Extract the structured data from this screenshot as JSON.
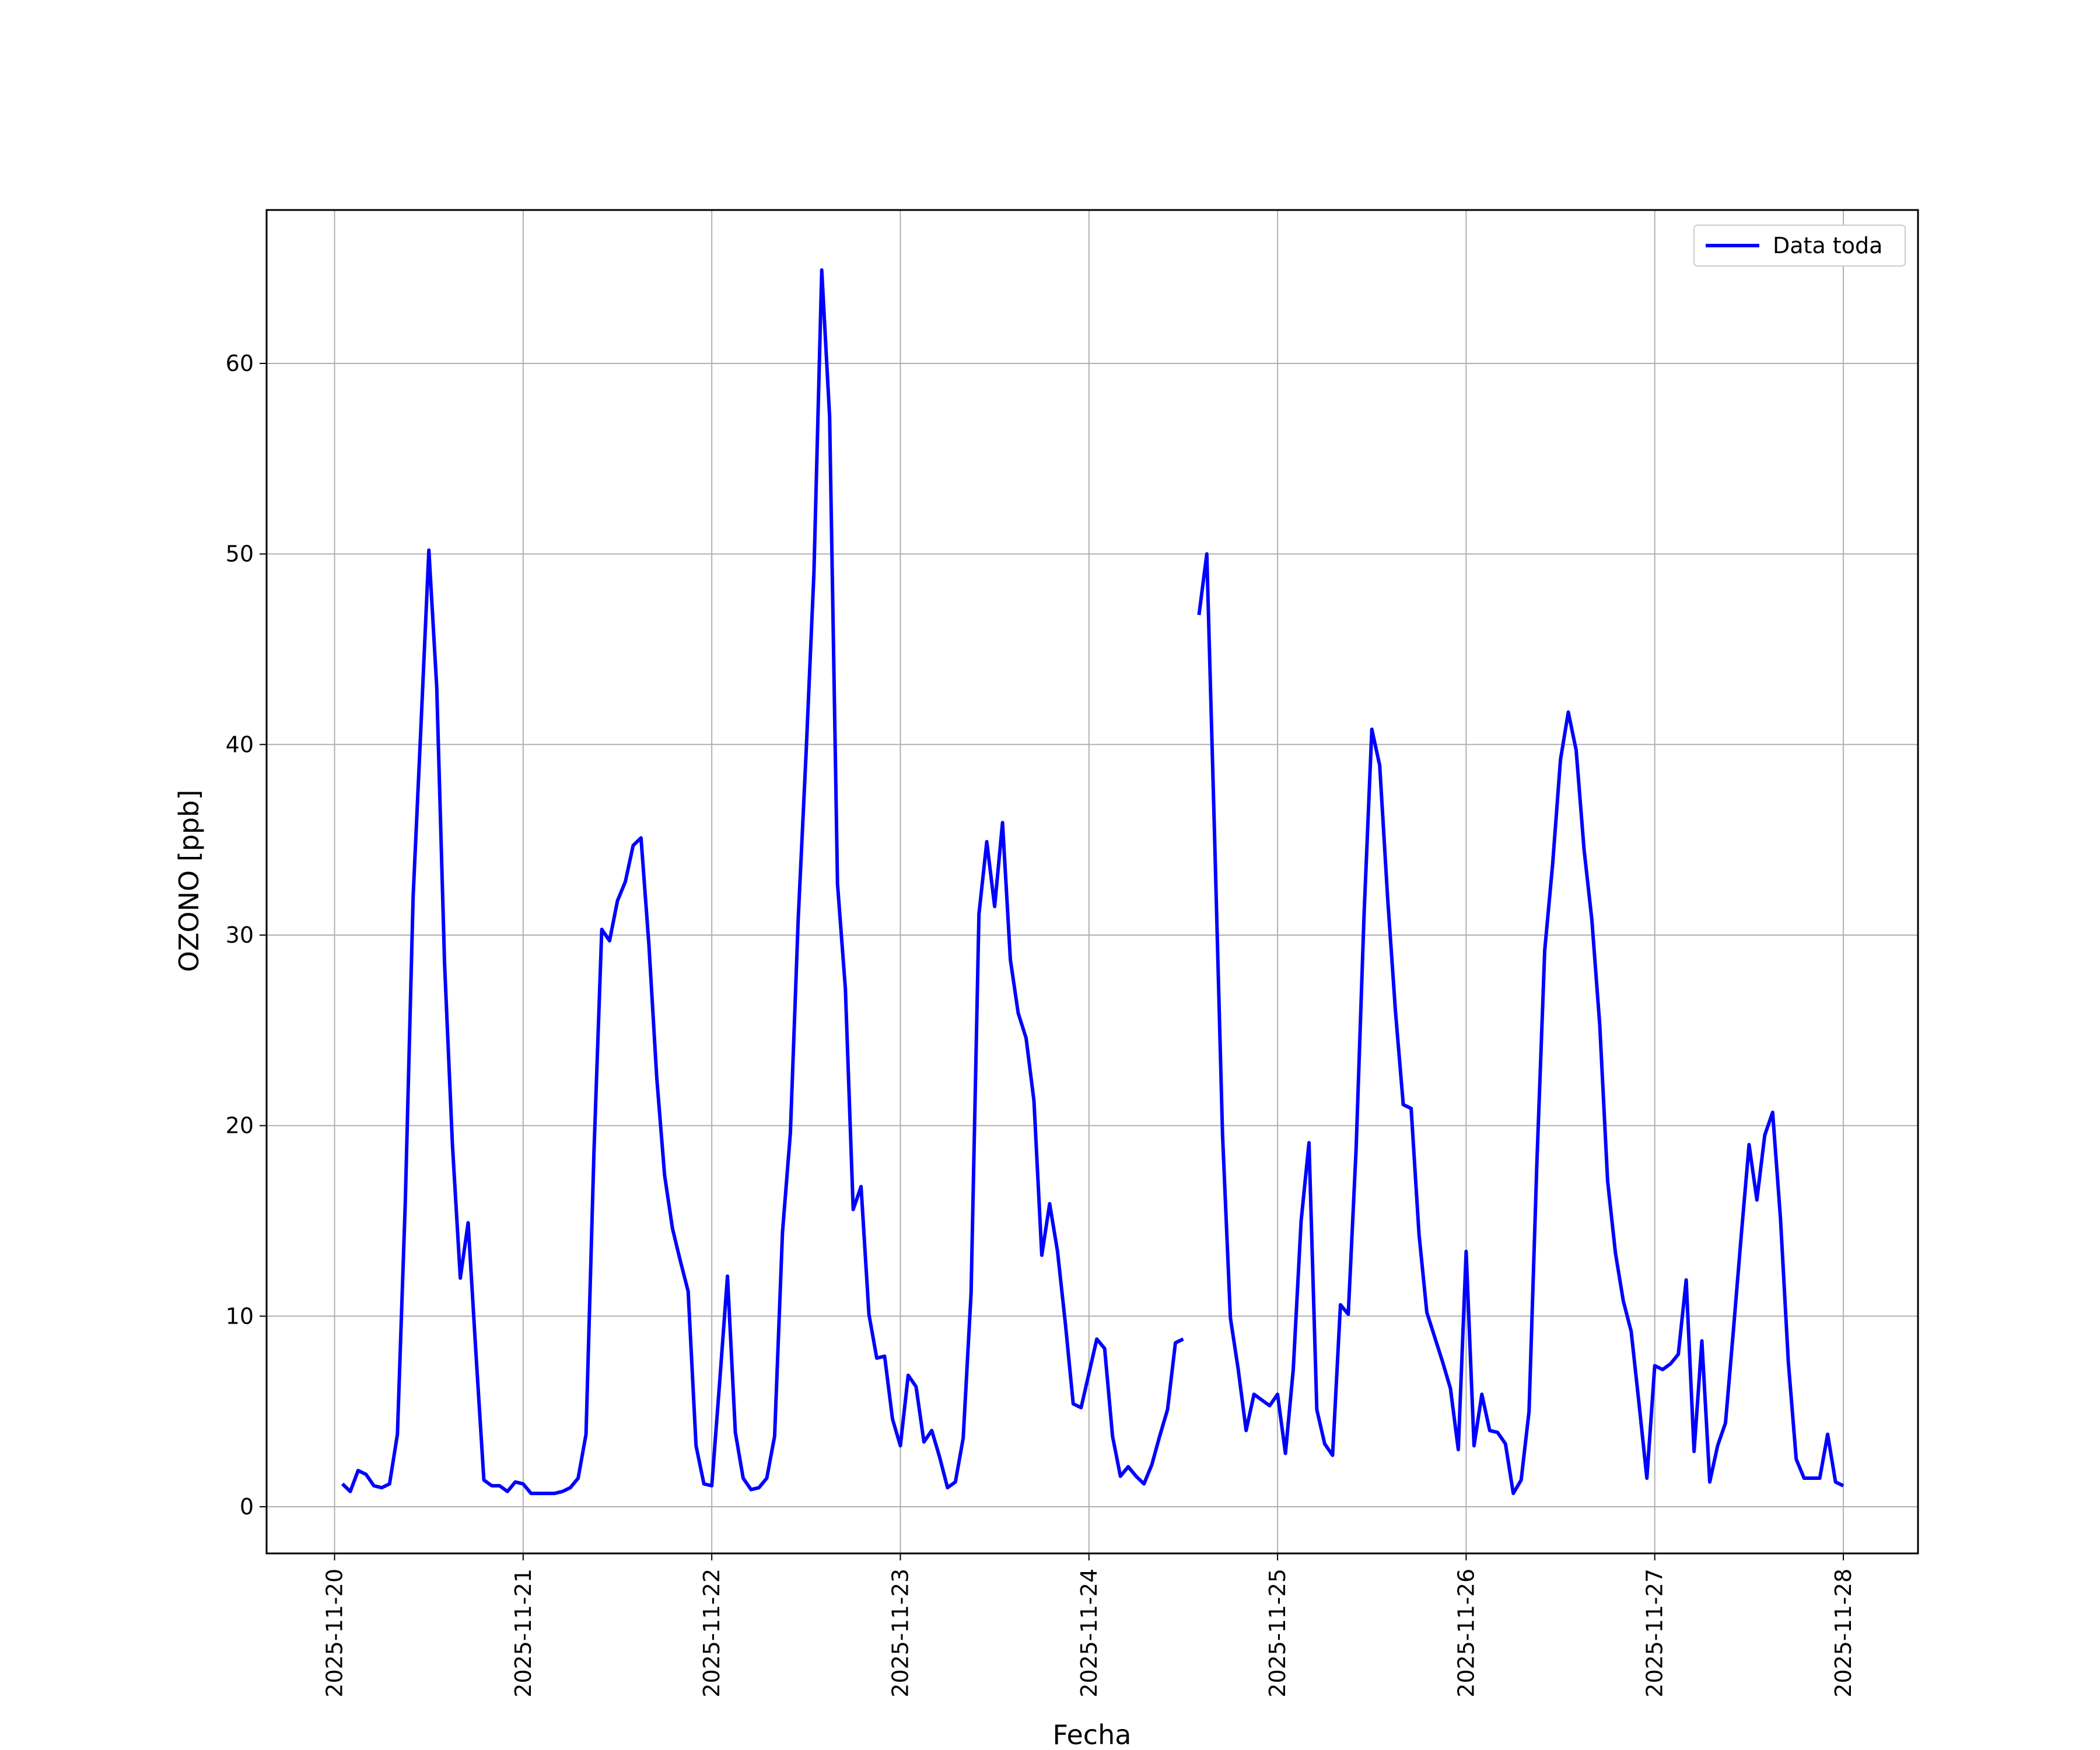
{
  "chart_data": {
    "type": "line",
    "xlabel": "Fecha",
    "ylabel": "OZONO [ppb]",
    "xlim": [
      "2025-11-19 15:21",
      "2025-11-28 09:30"
    ],
    "xticks": [
      "2025-11-20",
      "2025-11-21",
      "2025-11-22",
      "2025-11-23",
      "2025-11-24",
      "2025-11-25",
      "2025-11-26",
      "2025-11-27",
      "2025-11-28"
    ],
    "ylim": [
      -2.45,
      68.05
    ],
    "yticks": [
      0,
      10,
      20,
      30,
      40,
      50,
      60
    ],
    "grid": true,
    "legend": "upper right",
    "x": [
      "2025-11-20 01:00",
      "2025-11-20 02:00",
      "2025-11-20 03:00",
      "2025-11-20 04:00",
      "2025-11-20 05:00",
      "2025-11-20 06:00",
      "2025-11-20 07:00",
      "2025-11-20 08:00",
      "2025-11-20 09:00",
      "2025-11-20 10:00",
      "2025-11-20 11:00",
      "2025-11-20 12:00",
      "2025-11-20 13:00",
      "2025-11-20 14:00",
      "2025-11-20 15:00",
      "2025-11-20 16:00",
      "2025-11-20 17:00",
      "2025-11-20 18:00",
      "2025-11-20 19:00",
      "2025-11-20 20:00",
      "2025-11-20 21:00",
      "2025-11-20 22:00",
      "2025-11-20 23:00",
      "2025-11-21 00:00",
      "2025-11-21 01:00",
      "2025-11-21 02:00",
      "2025-11-21 03:00",
      "2025-11-21 04:00",
      "2025-11-21 05:00",
      "2025-11-21 06:00",
      "2025-11-21 07:00",
      "2025-11-21 08:00",
      "2025-11-21 09:00",
      "2025-11-21 10:00",
      "2025-11-21 11:00",
      "2025-11-21 12:00",
      "2025-11-21 13:00",
      "2025-11-21 14:00",
      "2025-11-21 15:00",
      "2025-11-21 16:00",
      "2025-11-21 17:00",
      "2025-11-21 18:00",
      "2025-11-21 19:00",
      "2025-11-21 20:00",
      "2025-11-21 21:00",
      "2025-11-21 22:00",
      "2025-11-21 23:00",
      "2025-11-22 00:00",
      "2025-11-22 01:00",
      "2025-11-22 02:00",
      "2025-11-22 03:00",
      "2025-11-22 04:00",
      "2025-11-22 05:00",
      "2025-11-22 06:00",
      "2025-11-22 07:00",
      "2025-11-22 08:00",
      "2025-11-22 09:00",
      "2025-11-22 10:00",
      "2025-11-22 11:00",
      "2025-11-22 12:00",
      "2025-11-22 13:00",
      "2025-11-22 14:00",
      "2025-11-22 15:00",
      "2025-11-22 16:00",
      "2025-11-22 17:00",
      "2025-11-22 18:00",
      "2025-11-22 19:00",
      "2025-11-22 20:00",
      "2025-11-22 21:00",
      "2025-11-22 22:00",
      "2025-11-22 23:00",
      "2025-11-23 00:00",
      "2025-11-23 01:00",
      "2025-11-23 02:00",
      "2025-11-23 03:00",
      "2025-11-23 04:00",
      "2025-11-23 05:00",
      "2025-11-23 06:00",
      "2025-11-23 07:00",
      "2025-11-23 08:00",
      "2025-11-23 09:00",
      "2025-11-23 10:00",
      "2025-11-23 11:00",
      "2025-11-23 12:00",
      "2025-11-23 13:00",
      "2025-11-23 14:00",
      "2025-11-23 15:00",
      "2025-11-23 16:00",
      "2025-11-23 17:00",
      "2025-11-23 18:00",
      "2025-11-23 19:00",
      "2025-11-23 20:00",
      "2025-11-23 21:00",
      "2025-11-23 22:00",
      "2025-11-23 23:00",
      "2025-11-24 00:00",
      "2025-11-24 01:00",
      "2025-11-24 02:00",
      "2025-11-24 03:00",
      "2025-11-24 04:00",
      "2025-11-24 05:00",
      "2025-11-24 06:00",
      "2025-11-24 07:00",
      "2025-11-24 08:00",
      "2025-11-24 09:00",
      "2025-11-24 10:00",
      "2025-11-24 11:00",
      "2025-11-24 12:00",
      "2025-11-24 13:00",
      "2025-11-24 14:00",
      "2025-11-24 15:00",
      "2025-11-24 16:00",
      "2025-11-24 17:00",
      "2025-11-24 18:00",
      "2025-11-24 19:00",
      "2025-11-24 20:00",
      "2025-11-24 21:00",
      "2025-11-24 22:00",
      "2025-11-24 23:00",
      "2025-11-25 00:00",
      "2025-11-25 01:00",
      "2025-11-25 02:00",
      "2025-11-25 03:00",
      "2025-11-25 04:00",
      "2025-11-25 05:00",
      "2025-11-25 06:00",
      "2025-11-25 07:00",
      "2025-11-25 08:00",
      "2025-11-25 09:00",
      "2025-11-25 10:00",
      "2025-11-25 11:00",
      "2025-11-25 12:00",
      "2025-11-25 13:00",
      "2025-11-25 14:00",
      "2025-11-25 15:00",
      "2025-11-25 16:00",
      "2025-11-25 17:00",
      "2025-11-25 18:00",
      "2025-11-25 19:00",
      "2025-11-25 20:00",
      "2025-11-25 21:00",
      "2025-11-25 22:00",
      "2025-11-25 23:00",
      "2025-11-26 00:00",
      "2025-11-26 01:00",
      "2025-11-26 02:00",
      "2025-11-26 03:00",
      "2025-11-26 04:00",
      "2025-11-26 05:00",
      "2025-11-26 06:00",
      "2025-11-26 07:00",
      "2025-11-26 08:00",
      "2025-11-26 09:00",
      "2025-11-26 10:00",
      "2025-11-26 11:00",
      "2025-11-26 12:00",
      "2025-11-26 13:00",
      "2025-11-26 14:00",
      "2025-11-26 15:00",
      "2025-11-26 16:00",
      "2025-11-26 17:00",
      "2025-11-26 18:00",
      "2025-11-26 19:00",
      "2025-11-26 20:00",
      "2025-11-26 21:00",
      "2025-11-26 22:00",
      "2025-11-26 23:00",
      "2025-11-27 00:00",
      "2025-11-27 01:00",
      "2025-11-27 02:00",
      "2025-11-27 03:00",
      "2025-11-27 04:00",
      "2025-11-27 05:00",
      "2025-11-27 06:00",
      "2025-11-27 07:00",
      "2025-11-27 08:00",
      "2025-11-27 09:00",
      "2025-11-27 10:00",
      "2025-11-27 11:00",
      "2025-11-27 12:00",
      "2025-11-27 13:00",
      "2025-11-27 14:00",
      "2025-11-27 15:00",
      "2025-11-27 16:00",
      "2025-11-27 17:00",
      "2025-11-27 18:00",
      "2025-11-27 19:00",
      "2025-11-27 20:00",
      "2025-11-27 21:00",
      "2025-11-27 22:00",
      "2025-11-27 23:00",
      "2025-11-28 00:00"
    ],
    "series": [
      {
        "name": "Data toda",
        "color": "#0000ff",
        "values": [
          1.2,
          0.8,
          1.9,
          1.7,
          1.1,
          1.0,
          1.2,
          3.8,
          16,
          32,
          41,
          50.2,
          43,
          28.5,
          19,
          12,
          14.9,
          8,
          1.4,
          1.1,
          1.1,
          0.8,
          1.3,
          1.2,
          0.7,
          0.7,
          0.7,
          0.7,
          0.8,
          1.0,
          1.5,
          3.8,
          18.5,
          30.3,
          29.7,
          31.8,
          32.8,
          34.7,
          35.1,
          29.5,
          22.5,
          17.4,
          14.6,
          12.9,
          11.3,
          3.2,
          1.2,
          1.1,
          6.5,
          12.1,
          3.9,
          1.5,
          0.9,
          1.0,
          1.5,
          3.7,
          14.4,
          19.6,
          30.8,
          39.5,
          49,
          64.9,
          57.2,
          32.7,
          27.2,
          15.6,
          16.8,
          10.1,
          7.8,
          7.9,
          4.6,
          3.2,
          6.9,
          6.3,
          3.4,
          4.0,
          2.6,
          1.0,
          1.3,
          3.6,
          11.2,
          31.1,
          34.9,
          31.5,
          35.9,
          28.7,
          25.9,
          24.6,
          21.3,
          13.2,
          15.9,
          13.4,
          9.6,
          5.4,
          5.2,
          7.0,
          8.8,
          8.3,
          3.7,
          1.6,
          2.1,
          1.6,
          1.2,
          2.2,
          3.7,
          5.1,
          8.6,
          8.8,
          null,
          46.8,
          50.0,
          35,
          19.5,
          9.9,
          7.2,
          4.0,
          5.9,
          5.6,
          5.3,
          5.9,
          2.8,
          7.2,
          15,
          19.1,
          5.1,
          3.3,
          2.7,
          10.6,
          10.1,
          18.8,
          31,
          40.8,
          38.9,
          32,
          26,
          21.1,
          20.9,
          14.3,
          10.2,
          8.9,
          7.6,
          6.2,
          3.0,
          13.4,
          3.2,
          5.9,
          4.0,
          3.9,
          3.3,
          0.7,
          1.4,
          5.0,
          18,
          29.2,
          33.7,
          39.2,
          41.7,
          39.7,
          34.5,
          30.8,
          25.3,
          17.1,
          13.3,
          10.8,
          9.2,
          5.4,
          1.5,
          7.4,
          7.2,
          7.5,
          8.0,
          11.9,
          2.9,
          8.7,
          1.3,
          3.2,
          4.4,
          9.2,
          14.2,
          19,
          16.1,
          19.5,
          20.7,
          15.1,
          7.6,
          2.5,
          1.5,
          1.5,
          1.5,
          3.8,
          1.3,
          1.1
        ]
      }
    ]
  }
}
